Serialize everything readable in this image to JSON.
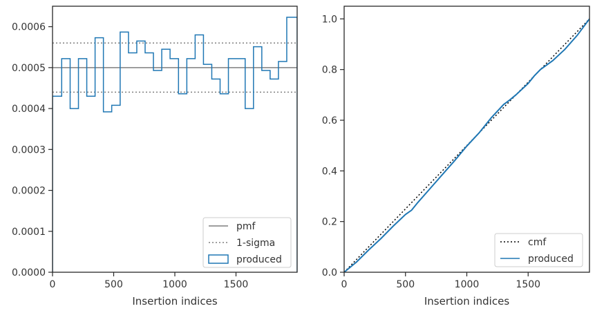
{
  "chart_data": [
    {
      "type": "histogram-step",
      "xlabel": "Insertion indices",
      "ylabel": "",
      "xlim": [
        0,
        2000
      ],
      "ylim": [
        0,
        0.00065
      ],
      "xticks": [
        0,
        500,
        1000,
        1500
      ],
      "xtick_labels": [
        "0",
        "500",
        "1000",
        "1500"
      ],
      "yticks": [
        0,
        0.0001,
        0.0002,
        0.0003,
        0.0004,
        0.0005,
        0.0006
      ],
      "ytick_labels": [
        "0.0000",
        "0.0001",
        "0.0002",
        "0.0003",
        "0.0004",
        "0.0005",
        "0.0006"
      ],
      "grid": false,
      "legend_position": "lower right",
      "series": [
        {
          "name": "pmf",
          "kind": "hline",
          "y": 0.0005,
          "color": "#7f7f7f",
          "dash": "solid"
        },
        {
          "name": "1-sigma",
          "kind": "hlines",
          "y": [
            0.00044,
            0.00056
          ],
          "color": "#7f7f7f",
          "dash": "dotted"
        },
        {
          "name": "produced",
          "kind": "step",
          "color": "#1f77b4",
          "bin_edges": [
            0,
            75,
            144,
            212,
            280,
            348,
            416,
            484,
            553,
            621,
            689,
            757,
            825,
            893,
            961,
            1030,
            1098,
            1166,
            1234,
            1302,
            1370,
            1438,
            1506,
            1575,
            1643,
            1711,
            1779,
            1847,
            1915,
            2000
          ],
          "values": [
            0.00043,
            0.000522,
            0.0004,
            0.000522,
            0.00043,
            0.000573,
            0.000392,
            0.000408,
            0.000587,
            0.000536,
            0.000565,
            0.000536,
            0.000493,
            0.000545,
            0.000522,
            0.000436,
            0.000522,
            0.00058,
            0.000508,
            0.000472,
            0.000436,
            0.000522,
            0.000522,
            0.0004,
            0.000551,
            0.000493,
            0.000472,
            0.000515,
            0.000623
          ]
        }
      ]
    },
    {
      "type": "line",
      "xlabel": "Insertion indices",
      "ylabel": "",
      "xlim": [
        0,
        2000
      ],
      "ylim": [
        0,
        1.05
      ],
      "xticks": [
        0,
        500,
        1000,
        1500
      ],
      "xtick_labels": [
        "0",
        "500",
        "1000",
        "1500"
      ],
      "yticks": [
        0,
        0.2,
        0.4,
        0.6,
        0.8,
        1.0
      ],
      "ytick_labels": [
        "0.0",
        "0.2",
        "0.4",
        "0.6",
        "0.8",
        "1.0"
      ],
      "grid": false,
      "legend_position": "lower right",
      "series": [
        {
          "name": "cmf",
          "kind": "line",
          "color": "#000000",
          "dash": "dotted",
          "x": [
            0,
            2000
          ],
          "y": [
            0,
            1.0
          ]
        },
        {
          "name": "produced",
          "kind": "line",
          "color": "#1f77b4",
          "x": [
            0,
            100,
            200,
            300,
            400,
            500,
            550,
            600,
            700,
            800,
            900,
            1000,
            1100,
            1200,
            1300,
            1350,
            1400,
            1500,
            1550,
            1600,
            1700,
            1800,
            1900,
            2000
          ],
          "y": [
            0,
            0.04,
            0.088,
            0.133,
            0.182,
            0.228,
            0.245,
            0.275,
            0.33,
            0.385,
            0.44,
            0.498,
            0.55,
            0.61,
            0.662,
            0.68,
            0.7,
            0.745,
            0.775,
            0.8,
            0.835,
            0.88,
            0.935,
            1.0
          ]
        }
      ]
    }
  ]
}
